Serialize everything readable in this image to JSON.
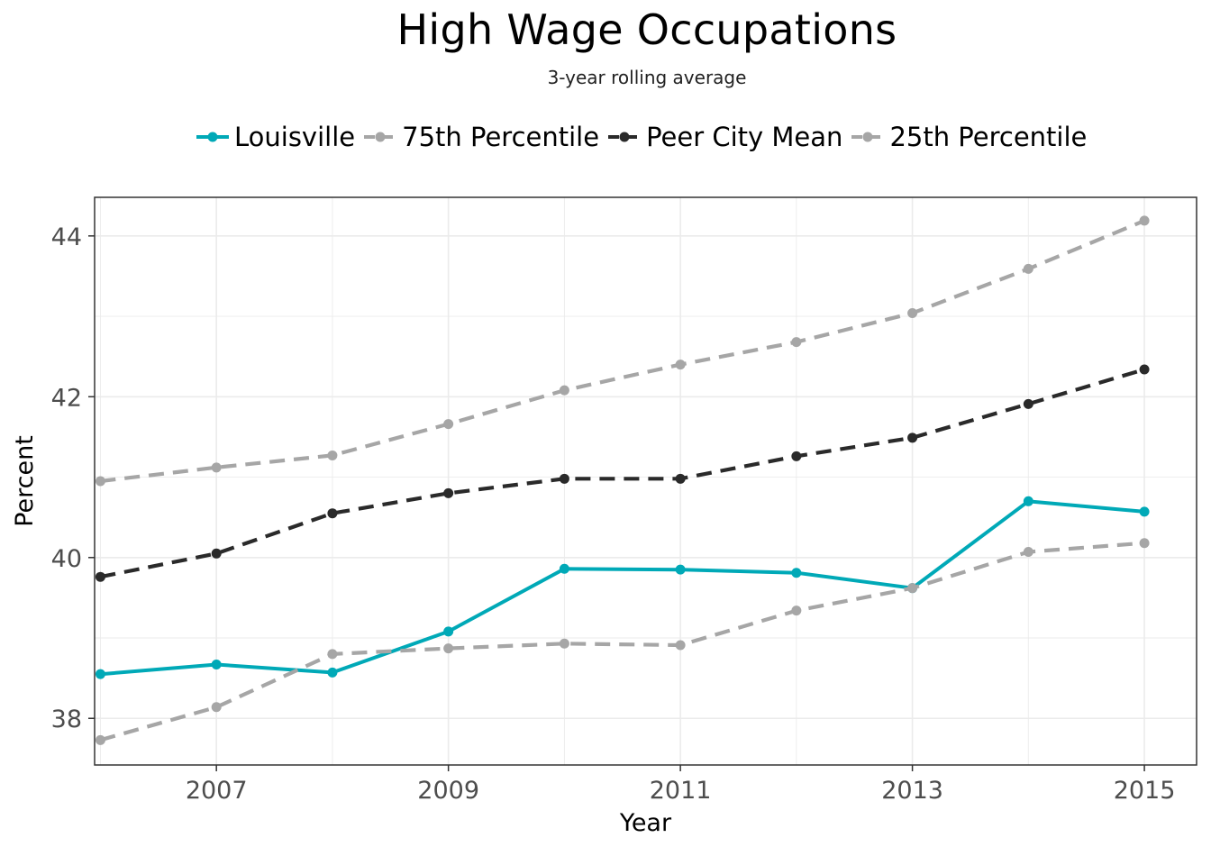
{
  "chart_data": {
    "type": "line",
    "title": "High Wage Occupations",
    "subtitle": "3-year rolling average",
    "xlabel": "Year",
    "ylabel": "Percent",
    "x": [
      2006,
      2007,
      2008,
      2009,
      2010,
      2011,
      2012,
      2013,
      2014,
      2015
    ],
    "xticks": [
      2007,
      2009,
      2011,
      2013,
      2015
    ],
    "yticks": [
      38,
      40,
      42,
      44
    ],
    "xlim": [
      2005.95,
      2015.45
    ],
    "ylim": [
      37.42,
      44.48
    ],
    "grid": true,
    "legend_position": "top",
    "series": [
      {
        "name": "Louisville",
        "color": "#00a9b7",
        "style": "solid",
        "values": [
          38.55,
          38.67,
          38.57,
          39.08,
          39.86,
          39.85,
          39.81,
          39.62,
          40.7,
          40.57
        ]
      },
      {
        "name": "75th Percentile",
        "color": "#a6a6a6",
        "style": "dashed",
        "values": [
          40.95,
          41.12,
          41.27,
          41.66,
          42.08,
          42.4,
          42.68,
          43.04,
          43.59,
          44.19
        ]
      },
      {
        "name": "Peer City Mean",
        "color": "#2a2a2a",
        "style": "dashed",
        "values": [
          39.76,
          40.05,
          40.55,
          40.8,
          40.98,
          40.98,
          41.26,
          41.49,
          41.91,
          42.34
        ]
      },
      {
        "name": "25th Percentile",
        "color": "#a6a6a6",
        "style": "dashed",
        "values": [
          37.73,
          38.14,
          38.8,
          38.87,
          38.93,
          38.91,
          39.34,
          39.62,
          40.07,
          40.18
        ]
      }
    ]
  }
}
